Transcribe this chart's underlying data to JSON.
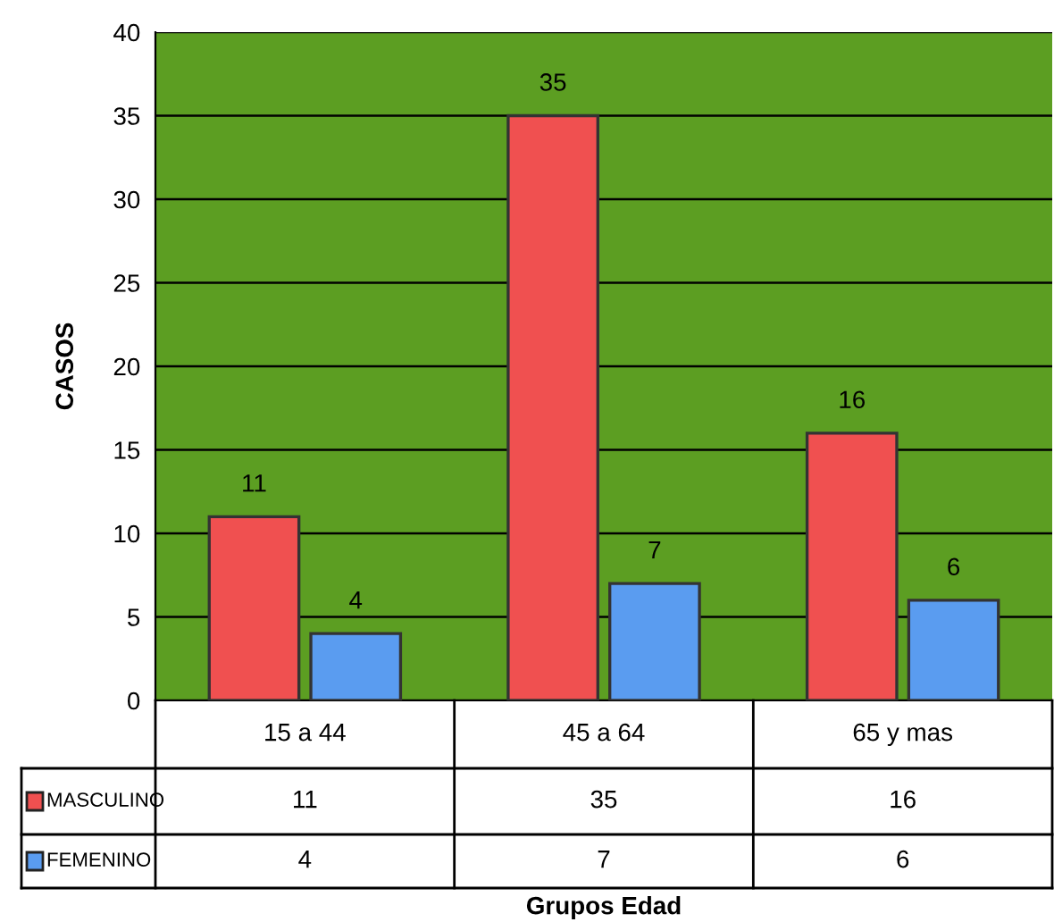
{
  "chart_data": {
    "type": "bar",
    "ylabel": "CASOS",
    "categories": [
      "15 a 44",
      "45 a 64",
      "65 y mas"
    ],
    "series": [
      {
        "name": "MASCULINO",
        "color": "#f05050",
        "values": [
          11,
          35,
          16
        ],
        "value_labels": [
          "11",
          "35",
          "16"
        ]
      },
      {
        "name": "FEMENINO",
        "color": "#5a9cf0",
        "values": [
          4,
          7,
          6
        ],
        "value_labels": [
          "4",
          "7",
          "6"
        ]
      }
    ],
    "annotations": [
      "11",
      "35",
      "16",
      "4",
      "7",
      "6",
      "Grupos Edad"
    ],
    "ylim": [
      0,
      40
    ],
    "yticks": [
      0,
      5,
      10,
      15,
      20,
      25,
      30,
      35,
      40
    ],
    "grid": "y",
    "legend": "bottom left"
  }
}
